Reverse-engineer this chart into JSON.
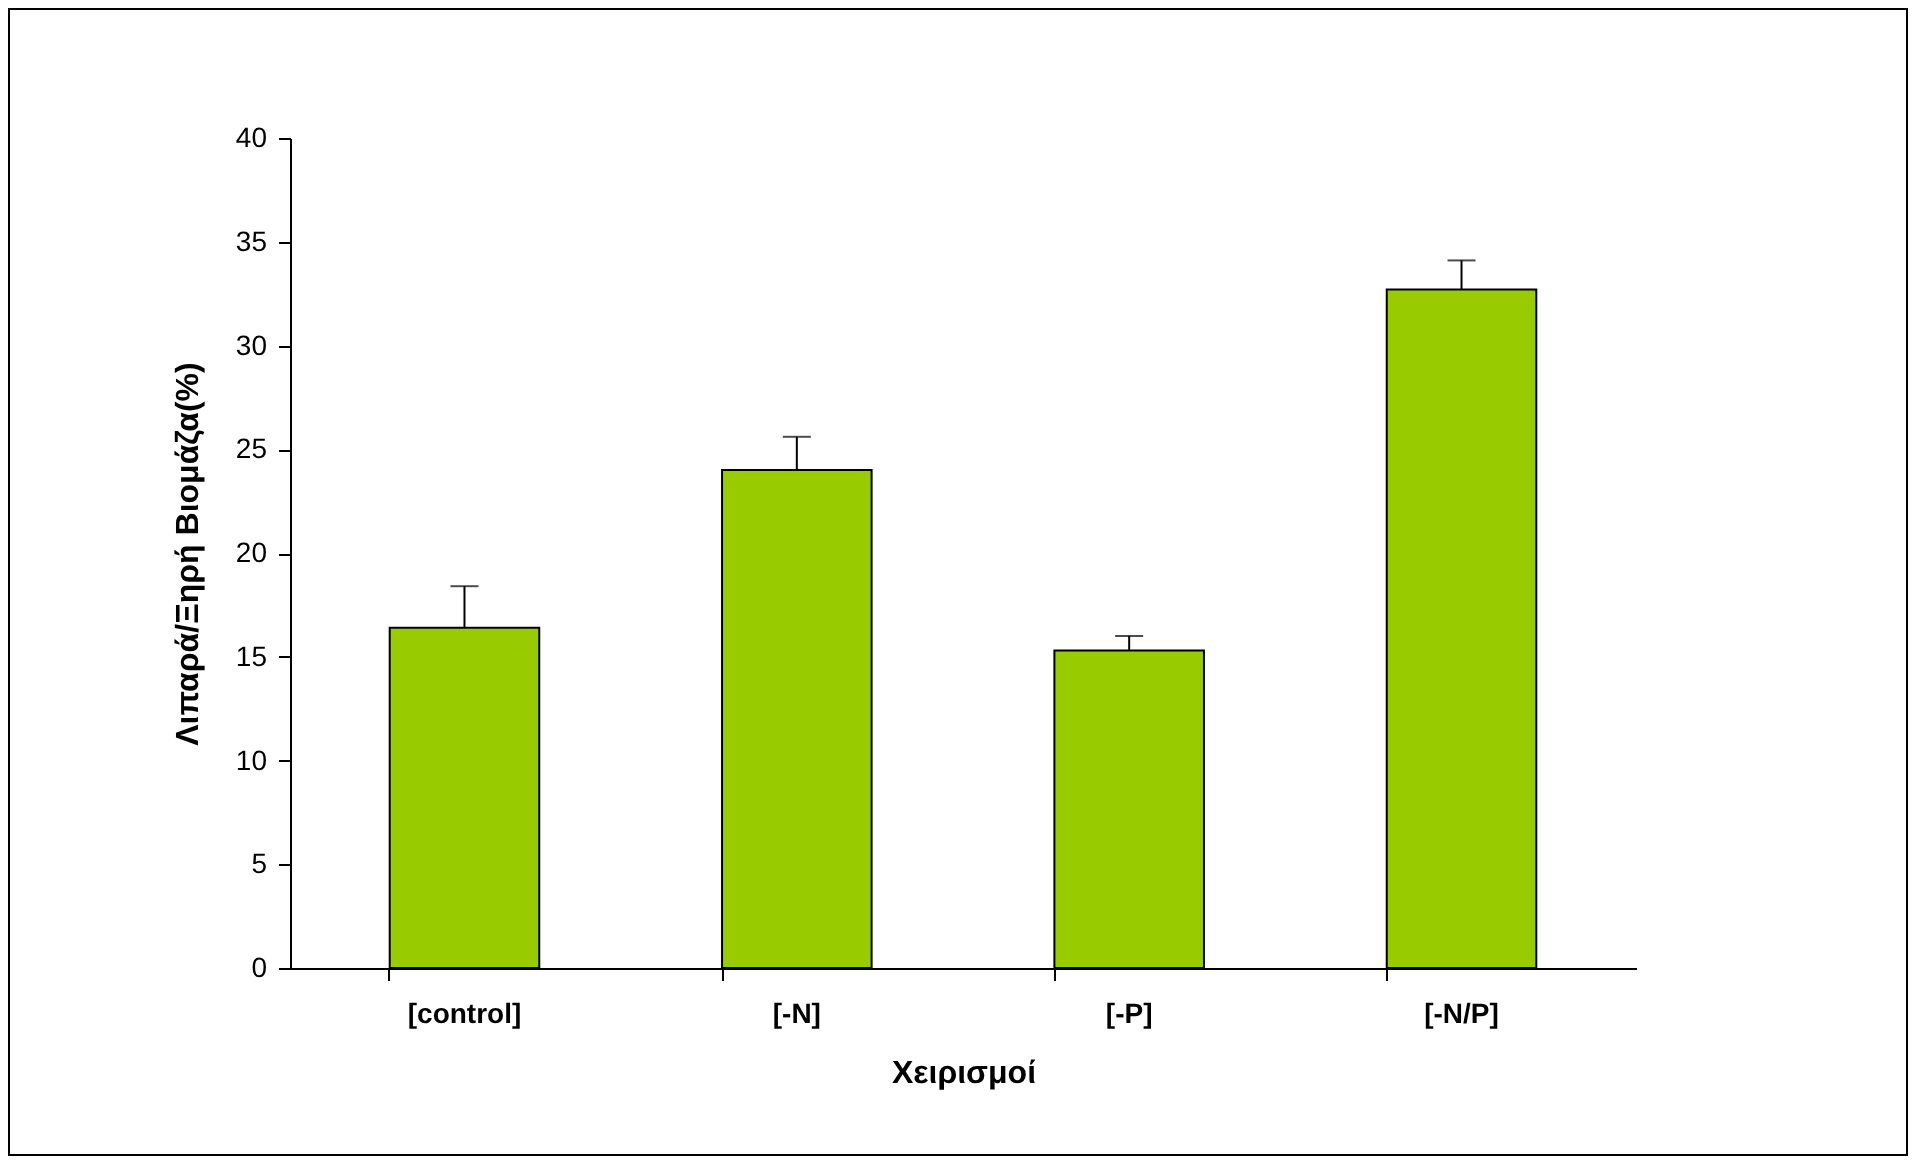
{
  "chart_data": {
    "type": "bar",
    "xlabel": "Χειρισμοί",
    "ylabel": "Λιπαρά/Ξηρή Βιομάζα(%)",
    "categories": [
      "[control]",
      "[-N]",
      "[-P]",
      "[-N/P]"
    ],
    "values": [
      16.4,
      24.0,
      15.3,
      32.7
    ],
    "errors": [
      [
        16.4,
        18.4
      ],
      [
        24.0,
        25.6
      ],
      [
        15.3,
        16.0
      ],
      [
        32.7,
        34.1
      ]
    ],
    "color": "#99cc00",
    "ylim": [
      0,
      40
    ],
    "yticks": [
      0,
      5,
      10,
      15,
      20,
      25,
      30,
      35,
      40
    ],
    "grid": false
  }
}
